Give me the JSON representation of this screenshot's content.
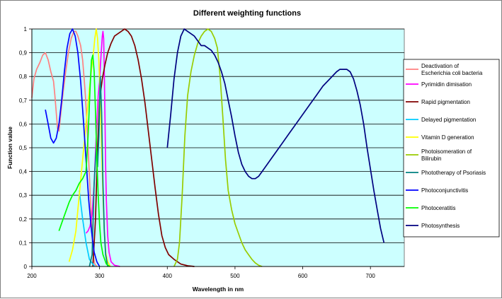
{
  "chart_data": {
    "type": "line",
    "title": "Different weighting functions",
    "xlabel": "Wavelength in nm",
    "ylabel": "Function value",
    "xlim": [
      200,
      750
    ],
    "ylim": [
      0,
      1
    ],
    "x_ticks": [
      "200",
      "300",
      "400",
      "500",
      "600",
      "700"
    ],
    "y_ticks": [
      "0",
      "0,1",
      "0,2",
      "0,3",
      "0,4",
      "0,5",
      "0,6",
      "0,7",
      "0,8",
      "0,9",
      "1"
    ],
    "grid": "horizontal",
    "legend_position": "right",
    "plot_background": "#ccffff",
    "series": [
      {
        "name": "Deactivation of Escherichia coli bacteria",
        "color": "#ff8080",
        "points": [
          [
            200,
            0.71
          ],
          [
            203,
            0.79
          ],
          [
            207,
            0.83
          ],
          [
            212,
            0.86
          ],
          [
            216,
            0.89
          ],
          [
            220,
            0.9
          ],
          [
            224,
            0.87
          ],
          [
            228,
            0.82
          ],
          [
            232,
            0.78
          ],
          [
            234,
            0.72
          ],
          [
            236,
            0.65
          ],
          [
            238,
            0.58
          ],
          [
            240,
            0.57
          ],
          [
            243,
            0.65
          ],
          [
            246,
            0.73
          ],
          [
            250,
            0.82
          ],
          [
            254,
            0.9
          ],
          [
            258,
            0.96
          ],
          [
            262,
            0.99
          ],
          [
            265,
            0.99
          ],
          [
            268,
            0.97
          ],
          [
            272,
            0.93
          ],
          [
            275,
            0.87
          ],
          [
            277,
            0.8
          ],
          [
            279,
            0.72
          ],
          [
            281,
            0.62
          ],
          [
            283,
            0.5
          ],
          [
            285,
            0.38
          ],
          [
            287,
            0.25
          ],
          [
            289,
            0.12
          ],
          [
            291,
            0.04
          ],
          [
            293,
            0.01
          ],
          [
            296,
            0
          ]
        ]
      },
      {
        "name": "Pyrimidin dimisation",
        "color": "#ff00ff",
        "points": [
          [
            280,
            0.14
          ],
          [
            283,
            0.15
          ],
          [
            286,
            0.17
          ],
          [
            289,
            0.22
          ],
          [
            292,
            0.35
          ],
          [
            295,
            0.55
          ],
          [
            298,
            0.72
          ],
          [
            300,
            0.78
          ],
          [
            302,
            0.88
          ],
          [
            304,
            0.97
          ],
          [
            305,
            0.99
          ],
          [
            306,
            0.96
          ],
          [
            307,
            0.82
          ],
          [
            308,
            0.62
          ],
          [
            309,
            0.42
          ],
          [
            310,
            0.28
          ],
          [
            312,
            0.13
          ],
          [
            314,
            0.06
          ],
          [
            317,
            0.02
          ],
          [
            322,
            0.005
          ],
          [
            330,
            0
          ]
        ]
      },
      {
        "name": "Rapid pigmentation",
        "color": "#800000",
        "points": [
          [
            290,
            0
          ],
          [
            294,
            0.2
          ],
          [
            297,
            0.5
          ],
          [
            300,
            0.7
          ],
          [
            304,
            0.79
          ],
          [
            308,
            0.85
          ],
          [
            312,
            0.9
          ],
          [
            317,
            0.94
          ],
          [
            322,
            0.97
          ],
          [
            327,
            0.98
          ],
          [
            332,
            0.99
          ],
          [
            337,
            1.0
          ],
          [
            342,
            0.99
          ],
          [
            347,
            0.97
          ],
          [
            352,
            0.93
          ],
          [
            357,
            0.87
          ],
          [
            362,
            0.79
          ],
          [
            367,
            0.69
          ],
          [
            372,
            0.57
          ],
          [
            377,
            0.45
          ],
          [
            382,
            0.33
          ],
          [
            387,
            0.22
          ],
          [
            392,
            0.13
          ],
          [
            397,
            0.08
          ],
          [
            402,
            0.05
          ],
          [
            410,
            0.03
          ],
          [
            420,
            0.01
          ],
          [
            430,
            0.003
          ],
          [
            440,
            0
          ]
        ]
      },
      {
        "name": "Delayed pigmentation",
        "color": "#00ccff",
        "points": [
          [
            270,
            0.32
          ],
          [
            275,
            0.2
          ],
          [
            280,
            0.1
          ],
          [
            285,
            0.03
          ],
          [
            290,
            0.01
          ],
          [
            293,
            0
          ]
        ]
      },
      {
        "name": "Vitamin D generation",
        "color": "#ffff00",
        "points": [
          [
            255,
            0.02
          ],
          [
            260,
            0.07
          ],
          [
            265,
            0.15
          ],
          [
            270,
            0.3
          ],
          [
            275,
            0.45
          ],
          [
            280,
            0.6
          ],
          [
            285,
            0.75
          ],
          [
            288,
            0.83
          ],
          [
            291,
            0.9
          ],
          [
            293,
            0.96
          ],
          [
            295,
            1.0
          ],
          [
            297,
            0.96
          ],
          [
            299,
            0.86
          ],
          [
            301,
            0.7
          ],
          [
            303,
            0.5
          ],
          [
            305,
            0.3
          ],
          [
            307,
            0.15
          ],
          [
            309,
            0.06
          ],
          [
            312,
            0.02
          ],
          [
            316,
            0
          ]
        ]
      },
      {
        "name": "Photoisomeration of Bilirubin",
        "color": "#99cc00",
        "points": [
          [
            410,
            0
          ],
          [
            415,
            0.03
          ],
          [
            418,
            0.1
          ],
          [
            422,
            0.3
          ],
          [
            426,
            0.55
          ],
          [
            430,
            0.72
          ],
          [
            435,
            0.82
          ],
          [
            440,
            0.89
          ],
          [
            445,
            0.94
          ],
          [
            450,
            0.97
          ],
          [
            455,
            0.99
          ],
          [
            460,
            1.0
          ],
          [
            465,
            0.99
          ],
          [
            470,
            0.96
          ],
          [
            474,
            0.92
          ],
          [
            478,
            0.8
          ],
          [
            482,
            0.63
          ],
          [
            486,
            0.45
          ],
          [
            490,
            0.32
          ],
          [
            495,
            0.24
          ],
          [
            500,
            0.18
          ],
          [
            505,
            0.14
          ],
          [
            510,
            0.1
          ],
          [
            515,
            0.07
          ],
          [
            520,
            0.05
          ],
          [
            525,
            0.03
          ],
          [
            530,
            0.015
          ],
          [
            535,
            0.005
          ],
          [
            540,
            0
          ]
        ]
      },
      {
        "name": "Phototherapy of Psoriasis",
        "color": "#008080",
        "points": [
          [
            285,
            0
          ],
          [
            289,
            0.05
          ],
          [
            292,
            0.35
          ],
          [
            295,
            0.5
          ],
          [
            297,
            0.42
          ],
          [
            299,
            0.55
          ],
          [
            301,
            0.8
          ],
          [
            303,
            0.65
          ],
          [
            305,
            0.35
          ],
          [
            307,
            0.15
          ],
          [
            309,
            0.05
          ],
          [
            312,
            0
          ]
        ]
      },
      {
        "name": "Photoconjunctivitis",
        "color": "#0000ff",
        "points": [
          [
            220,
            0.66
          ],
          [
            224,
            0.6
          ],
          [
            228,
            0.54
          ],
          [
            232,
            0.52
          ],
          [
            236,
            0.54
          ],
          [
            240,
            0.6
          ],
          [
            244,
            0.7
          ],
          [
            248,
            0.82
          ],
          [
            252,
            0.92
          ],
          [
            256,
            0.98
          ],
          [
            260,
            1.0
          ],
          [
            264,
            0.97
          ],
          [
            268,
            0.9
          ],
          [
            272,
            0.78
          ],
          [
            276,
            0.62
          ],
          [
            280,
            0.45
          ],
          [
            284,
            0.28
          ],
          [
            288,
            0.15
          ],
          [
            292,
            0.06
          ],
          [
            296,
            0.02
          ],
          [
            300,
            0
          ]
        ]
      },
      {
        "name": "Photoceratitis",
        "color": "#00ff00",
        "points": [
          [
            240,
            0.15
          ],
          [
            245,
            0.19
          ],
          [
            250,
            0.23
          ],
          [
            255,
            0.27
          ],
          [
            260,
            0.3
          ],
          [
            265,
            0.32
          ],
          [
            270,
            0.35
          ],
          [
            275,
            0.37
          ],
          [
            280,
            0.4
          ],
          [
            283,
            0.55
          ],
          [
            286,
            0.75
          ],
          [
            288,
            0.87
          ],
          [
            290,
            0.89
          ],
          [
            292,
            0.82
          ],
          [
            294,
            0.65
          ],
          [
            296,
            0.45
          ],
          [
            298,
            0.3
          ],
          [
            300,
            0.18
          ],
          [
            302,
            0.1
          ],
          [
            305,
            0.05
          ],
          [
            310,
            0.01
          ],
          [
            315,
            0
          ]
        ]
      },
      {
        "name": "Photosynthesis",
        "color": "#000080",
        "points": [
          [
            400,
            0.5
          ],
          [
            405,
            0.64
          ],
          [
            410,
            0.79
          ],
          [
            415,
            0.9
          ],
          [
            420,
            0.97
          ],
          [
            425,
            1.0
          ],
          [
            430,
            0.99
          ],
          [
            435,
            0.98
          ],
          [
            440,
            0.97
          ],
          [
            445,
            0.95
          ],
          [
            450,
            0.93
          ],
          [
            455,
            0.93
          ],
          [
            460,
            0.92
          ],
          [
            465,
            0.91
          ],
          [
            470,
            0.89
          ],
          [
            475,
            0.86
          ],
          [
            480,
            0.82
          ],
          [
            485,
            0.77
          ],
          [
            490,
            0.7
          ],
          [
            495,
            0.63
          ],
          [
            500,
            0.55
          ],
          [
            505,
            0.48
          ],
          [
            510,
            0.43
          ],
          [
            515,
            0.4
          ],
          [
            520,
            0.38
          ],
          [
            525,
            0.37
          ],
          [
            530,
            0.37
          ],
          [
            535,
            0.38
          ],
          [
            540,
            0.4
          ],
          [
            550,
            0.44
          ],
          [
            560,
            0.48
          ],
          [
            570,
            0.52
          ],
          [
            580,
            0.56
          ],
          [
            590,
            0.6
          ],
          [
            600,
            0.64
          ],
          [
            610,
            0.68
          ],
          [
            620,
            0.72
          ],
          [
            630,
            0.76
          ],
          [
            640,
            0.79
          ],
          [
            650,
            0.82
          ],
          [
            655,
            0.83
          ],
          [
            660,
            0.83
          ],
          [
            665,
            0.83
          ],
          [
            670,
            0.82
          ],
          [
            675,
            0.79
          ],
          [
            680,
            0.74
          ],
          [
            685,
            0.68
          ],
          [
            690,
            0.6
          ],
          [
            695,
            0.5
          ],
          [
            700,
            0.41
          ],
          [
            705,
            0.32
          ],
          [
            710,
            0.24
          ],
          [
            715,
            0.16
          ],
          [
            720,
            0.1
          ]
        ]
      }
    ]
  }
}
